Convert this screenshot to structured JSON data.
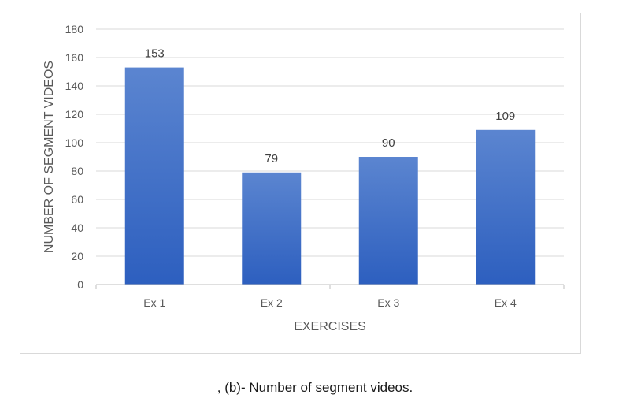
{
  "chart_data": {
    "type": "bar",
    "categories": [
      "Ex 1",
      "Ex 2",
      "Ex 3",
      "Ex 4"
    ],
    "values": [
      153,
      79,
      90,
      109
    ],
    "data_labels": [
      "153",
      "79",
      "90",
      "109"
    ],
    "title": "",
    "xlabel": "EXERCISES",
    "ylabel": "NUMBER OF SEGMENT VIDEOS",
    "ylim": [
      0,
      180
    ],
    "yticks": [
      0,
      20,
      40,
      60,
      80,
      100,
      120,
      140,
      160,
      180
    ],
    "grid": true,
    "legend": "none",
    "bar_color_top": "#5b85d0",
    "bar_color_bottom": "#2d5fbf",
    "grid_color": "#d9d9d9"
  },
  "caption": ", (b)- Number of segment videos."
}
